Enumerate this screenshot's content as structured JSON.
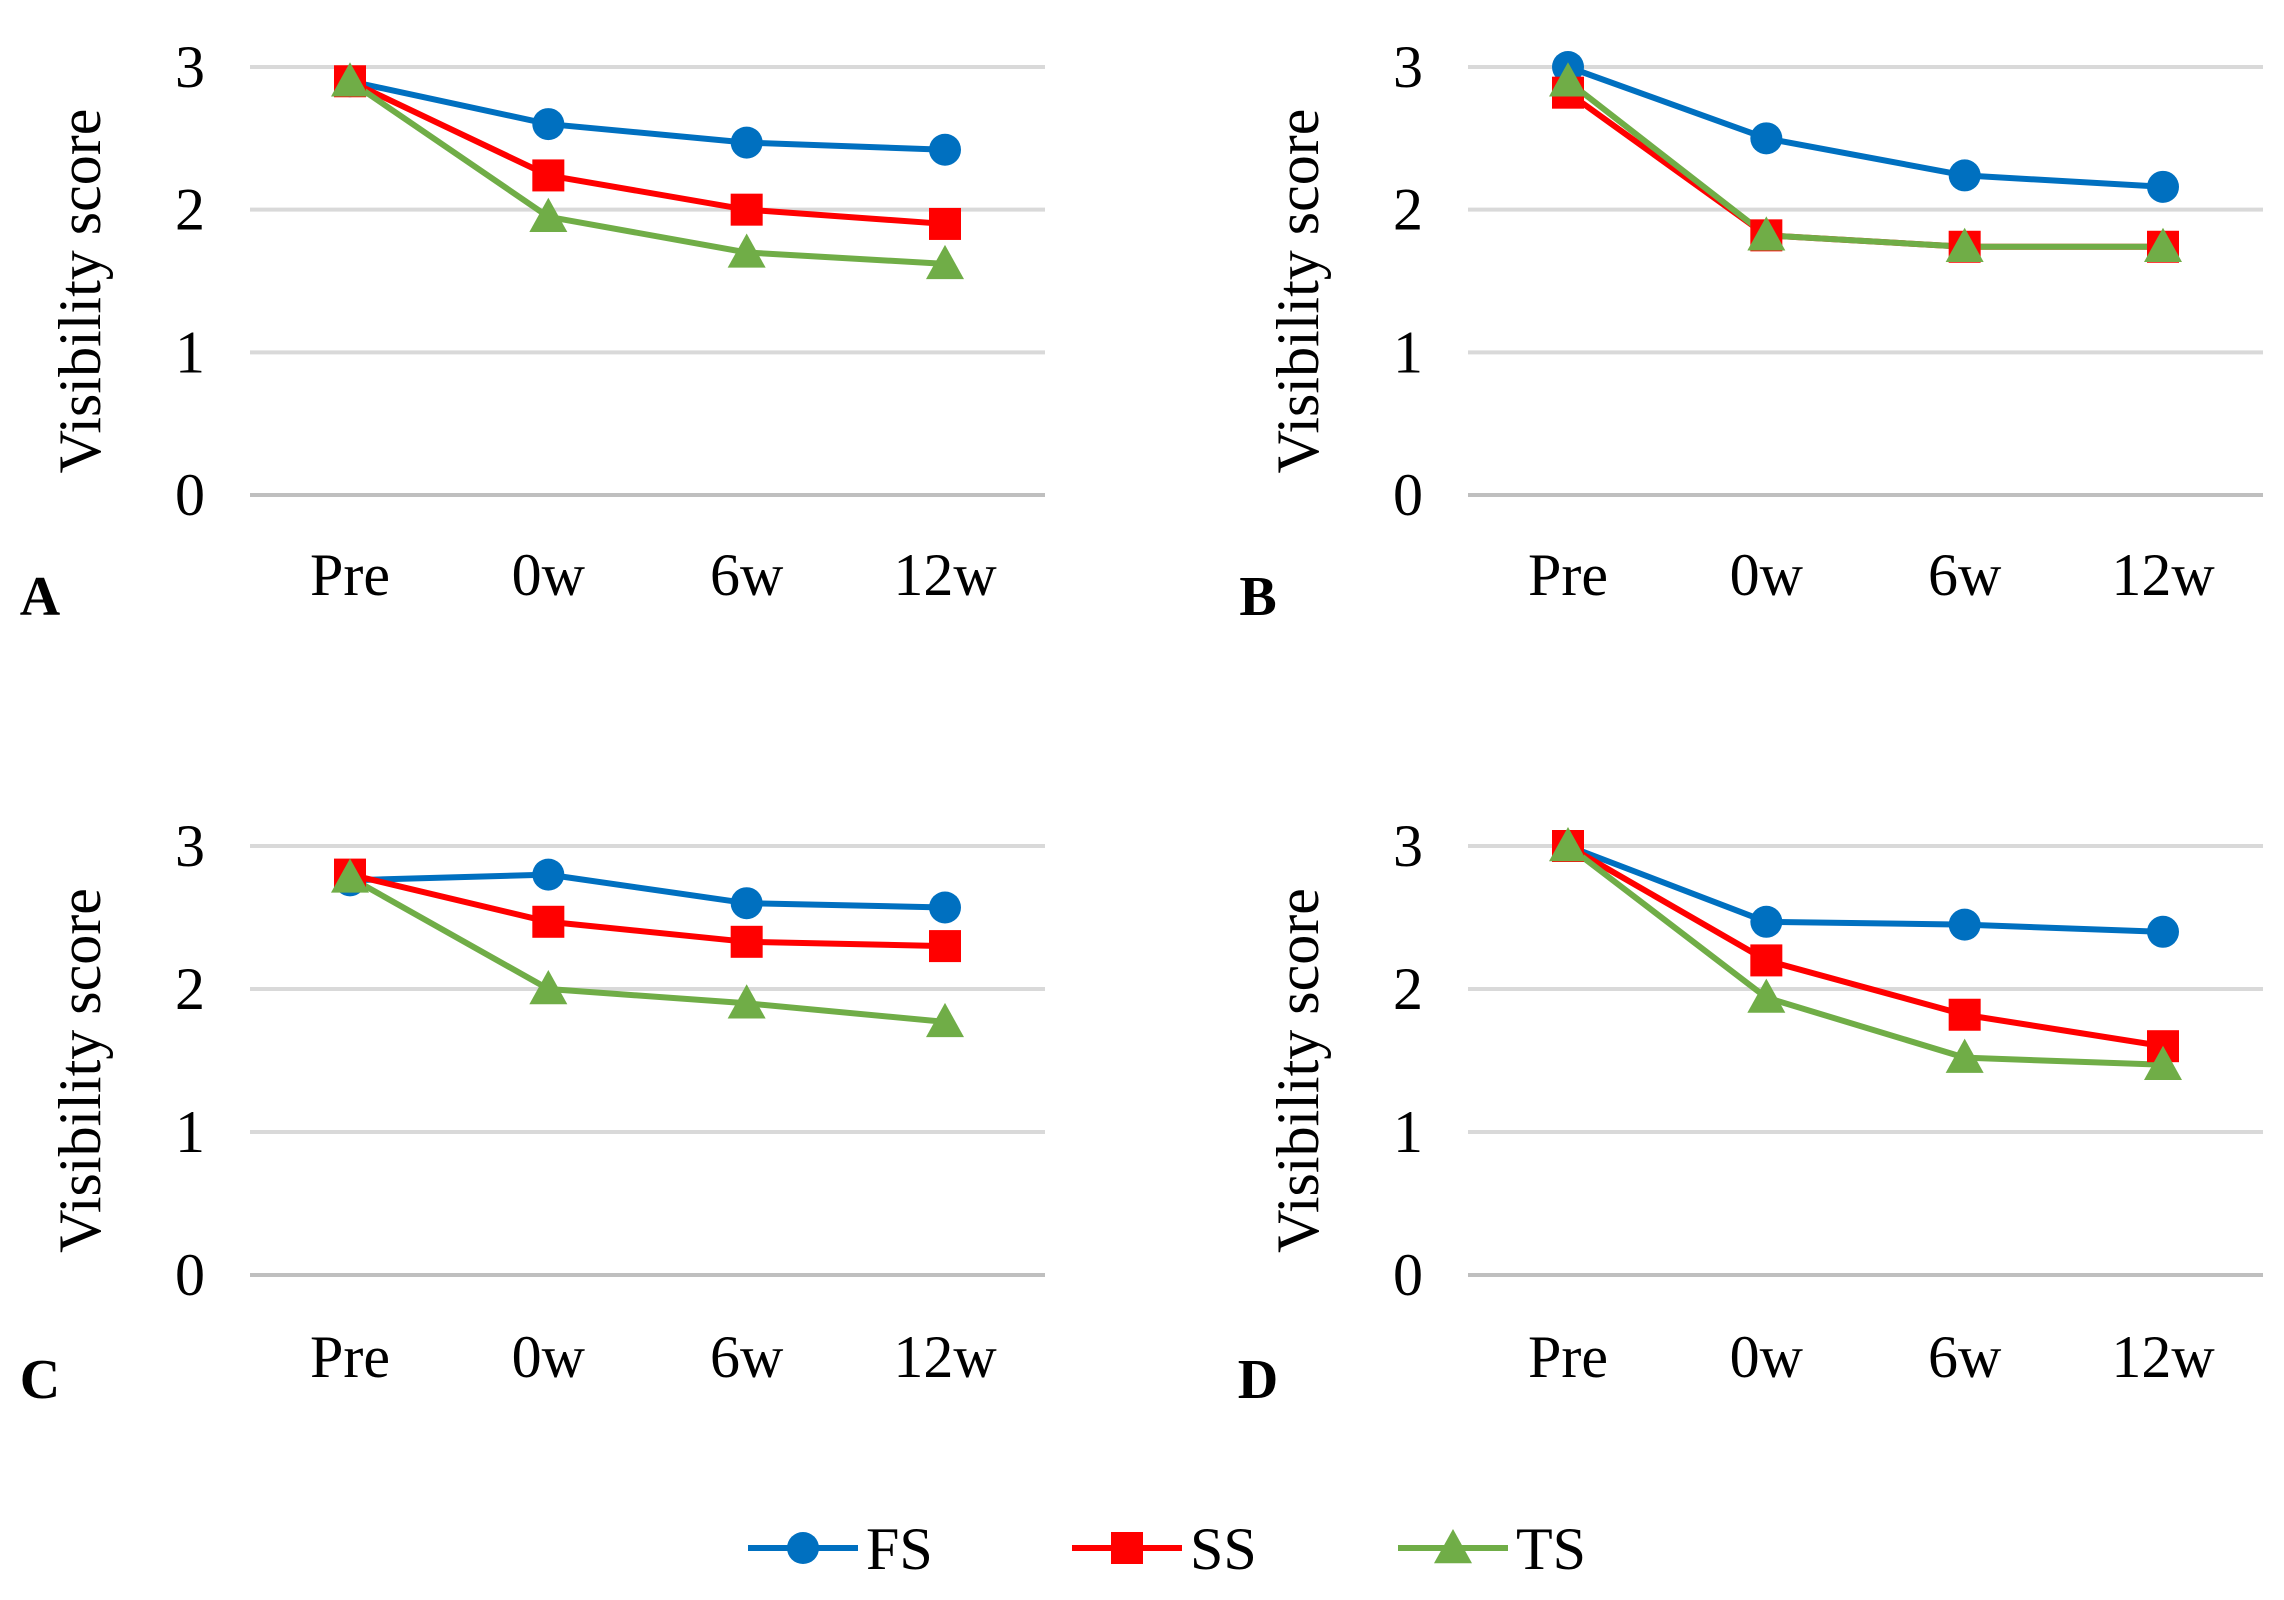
{
  "figure": {
    "legend_position": "bottom-center",
    "legend": [
      {
        "name": "FS",
        "marker": "circle",
        "color": "#0070C0"
      },
      {
        "name": "SS",
        "marker": "square",
        "color": "#FF0000"
      },
      {
        "name": "TS",
        "marker": "triangle",
        "color": "#70AD47"
      }
    ]
  },
  "chart_data": [
    {
      "panel": "A",
      "type": "line",
      "categories": [
        "Pre",
        "0w",
        "6w",
        "12w"
      ],
      "ylabel": "Visibility score",
      "yticks": [
        "0",
        "1",
        "2",
        "3"
      ],
      "ylim": [
        0,
        3
      ],
      "grid": true,
      "series": [
        {
          "name": "FS",
          "color": "#0070C0",
          "marker": "circle",
          "values": [
            2.9,
            2.6,
            2.47,
            2.42
          ]
        },
        {
          "name": "SS",
          "color": "#FF0000",
          "marker": "square",
          "values": [
            2.9,
            2.24,
            2.0,
            1.9
          ]
        },
        {
          "name": "TS",
          "color": "#70AD47",
          "marker": "triangle",
          "values": [
            2.9,
            1.95,
            1.7,
            1.62
          ]
        }
      ]
    },
    {
      "panel": "B",
      "type": "line",
      "categories": [
        "Pre",
        "0w",
        "6w",
        "12w"
      ],
      "ylabel": "Visibility score",
      "yticks": [
        "0",
        "1",
        "2",
        "3"
      ],
      "ylim": [
        0,
        3
      ],
      "grid": true,
      "series": [
        {
          "name": "FS",
          "color": "#0070C0",
          "marker": "circle",
          "values": [
            3.0,
            2.5,
            2.24,
            2.16
          ]
        },
        {
          "name": "SS",
          "color": "#FF0000",
          "marker": "square",
          "values": [
            2.82,
            1.82,
            1.74,
            1.74
          ]
        },
        {
          "name": "TS",
          "color": "#70AD47",
          "marker": "triangle",
          "values": [
            2.9,
            1.82,
            1.74,
            1.74
          ]
        }
      ]
    },
    {
      "panel": "C",
      "type": "line",
      "categories": [
        "Pre",
        "0w",
        "6w",
        "12w"
      ],
      "ylabel": "Visibility score",
      "yticks": [
        "0",
        "1",
        "2",
        "3"
      ],
      "ylim": [
        0,
        3
      ],
      "grid": true,
      "series": [
        {
          "name": "FS",
          "color": "#0070C0",
          "marker": "circle",
          "values": [
            2.76,
            2.8,
            2.6,
            2.57
          ]
        },
        {
          "name": "SS",
          "color": "#FF0000",
          "marker": "square",
          "values": [
            2.8,
            2.47,
            2.33,
            2.3
          ]
        },
        {
          "name": "TS",
          "color": "#70AD47",
          "marker": "triangle",
          "values": [
            2.78,
            2.0,
            1.9,
            1.77
          ]
        }
      ]
    },
    {
      "panel": "D",
      "type": "line",
      "categories": [
        "Pre",
        "0w",
        "6w",
        "12w"
      ],
      "ylabel": "Visibility score",
      "yticks": [
        "0",
        "1",
        "2",
        "3"
      ],
      "ylim": [
        0,
        3
      ],
      "grid": true,
      "series": [
        {
          "name": "FS",
          "color": "#0070C0",
          "marker": "circle",
          "values": [
            3.0,
            2.47,
            2.45,
            2.4
          ]
        },
        {
          "name": "SS",
          "color": "#FF0000",
          "marker": "square",
          "values": [
            3.0,
            2.2,
            1.82,
            1.6
          ]
        },
        {
          "name": "TS",
          "color": "#70AD47",
          "marker": "triangle",
          "values": [
            3.0,
            1.94,
            1.52,
            1.47
          ]
        }
      ]
    }
  ]
}
